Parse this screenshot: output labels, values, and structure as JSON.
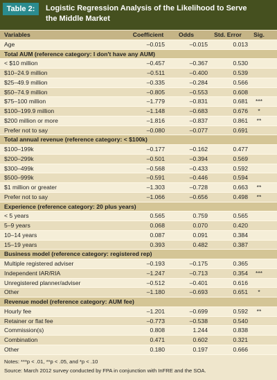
{
  "header": {
    "label": "Table 2:",
    "title": "Logistic Regression Analysis of the Likelihood to Serve the Middle Market"
  },
  "table": {
    "columns": [
      "Variables",
      "Coefficient",
      "Odds",
      "Std. Error",
      "Sig."
    ],
    "rows": [
      {
        "cells": [
          "Age",
          "–0.015",
          "–0.015",
          "0.013"
        ]
      },
      {
        "heading": "Total AUM (reference category: I don't have any AUM)"
      },
      {
        "cells": [
          "< $10 million",
          "–0.457",
          "–0.367",
          "0.530"
        ]
      },
      {
        "cells": [
          "$10–24.9 million",
          "–0.511",
          "–0.400",
          "0.539"
        ]
      },
      {
        "cells": [
          "$25–49.9 million",
          "–0.335",
          "–0.284",
          "0.566"
        ]
      },
      {
        "cells": [
          "$50–74.9 million",
          "–0.805",
          "–0.553",
          "0.608"
        ]
      },
      {
        "cells": [
          "$75–100 million",
          "–1.779",
          "–0.831",
          "0.681",
          "***"
        ]
      },
      {
        "cells": [
          "$100–199.9 million",
          "–1.148",
          "–0.683",
          "0.676",
          "*"
        ]
      },
      {
        "cells": [
          "$200 million or more",
          "–1.816",
          "–0.837",
          "0.861",
          "**"
        ]
      },
      {
        "cells": [
          "Prefer not to say",
          "–0.080",
          "–0.077",
          "0.691"
        ]
      },
      {
        "heading": "Total annual revenue (reference category: < $100k)"
      },
      {
        "cells": [
          "$100–199k",
          "–0.177",
          "–0.162",
          "0.477"
        ]
      },
      {
        "cells": [
          "$200–299k",
          "–0.501",
          "–0.394",
          "0.569"
        ]
      },
      {
        "cells": [
          "$300–499k",
          "–0.568",
          "–0.433",
          "0.592"
        ]
      },
      {
        "cells": [
          "$500–999k",
          "–0.591",
          "–0.446",
          "0.594"
        ]
      },
      {
        "cells": [
          "$1 million or greater",
          "–1.303",
          "–0.728",
          "0.663",
          "**"
        ]
      },
      {
        "cells": [
          "Prefer not to say",
          "–1.066",
          "–0.656",
          "0.498",
          "**"
        ]
      },
      {
        "heading": "Experience (reference category: 20 plus years)"
      },
      {
        "cells": [
          "< 5 years",
          "0.565",
          "0.759",
          "0.565"
        ]
      },
      {
        "cells": [
          "5–9 years",
          "0.068",
          "0.070",
          "0.420"
        ]
      },
      {
        "cells": [
          "10–14 years",
          "0.087",
          "0.091",
          "0.384"
        ]
      },
      {
        "cells": [
          "15–19 years",
          "0.393",
          "0.482",
          "0.387"
        ]
      },
      {
        "heading": "Business model (reference category: registered rep)"
      },
      {
        "cells": [
          "Multiple registered adviser",
          "–0.193",
          "–0.175",
          "0.365"
        ]
      },
      {
        "cells": [
          "Independent IAR/RIA",
          "–1.247",
          "–0.713",
          "0.354",
          "***"
        ]
      },
      {
        "cells": [
          "Unregistered planner/adviser",
          "–0.512",
          "–0.401",
          "0.616"
        ]
      },
      {
        "cells": [
          "Other",
          "–1.180",
          "–0.693",
          "0.651",
          "*"
        ]
      },
      {
        "heading": "Revenue model (reference category: AUM fee)"
      },
      {
        "cells": [
          "Hourly fee",
          "–1.201",
          "–0.699",
          "0.592",
          "**"
        ]
      },
      {
        "cells": [
          "Retainer or flat fee",
          "–0.773",
          "–0.538",
          "0.540"
        ]
      },
      {
        "cells": [
          "Commission(s)",
          "0.808",
          "1.244",
          "0.838"
        ]
      },
      {
        "cells": [
          "Combination",
          "0.471",
          "0.602",
          "0.321"
        ]
      },
      {
        "cells": [
          "Other",
          "0.180",
          "0.197",
          "0.666"
        ]
      }
    ]
  },
  "notes": [
    "Notes: ***p < .01, **p < .05, and *p < .10",
    "Source: March 2012 survey conducted by FPA in conjunction with InFRE and the SOA."
  ]
}
